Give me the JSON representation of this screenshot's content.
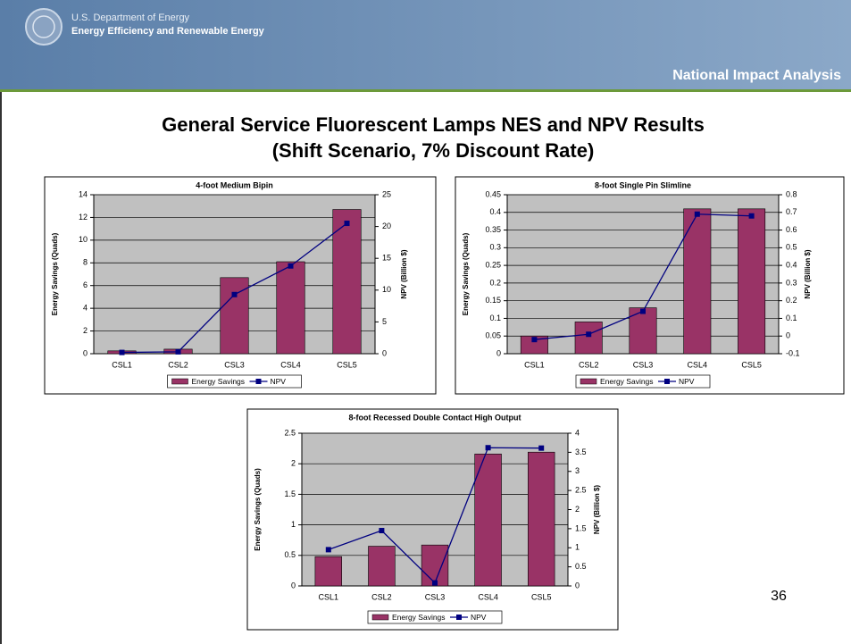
{
  "header": {
    "agency": "U.S. Department of Energy",
    "office": "Energy Efficiency and Renewable Energy",
    "section": "National Impact Analysis"
  },
  "title": [
    "General Service Fluorescent Lamps NES and NPV Results",
    "(Shift Scenario, 7% Discount Rate)"
  ],
  "page_number": "36",
  "chart_data": [
    {
      "type": "bar",
      "title": "4-foot Medium Bipin",
      "y_label": "Energy Savings (Quads)",
      "y2_label": "NPV (Billion $)",
      "categories": [
        "CSL1",
        "CSL2",
        "CSL3",
        "CSL4",
        "CSL5"
      ],
      "series": [
        {
          "name": "Energy Savings",
          "color": "#993366",
          "values": [
            0.25,
            0.4,
            6.7,
            8.1,
            12.7
          ]
        },
        {
          "name": "NPV",
          "type": "line",
          "axis": "y2",
          "color": "#000080",
          "values": [
            0.2,
            0.3,
            9.3,
            13.8,
            20.5
          ]
        }
      ],
      "ylim": [
        0,
        14
      ],
      "yticks": [
        0,
        2,
        4,
        6,
        8,
        10,
        12,
        14
      ],
      "y2lim": [
        0,
        25
      ],
      "y2ticks": [
        0,
        5,
        10,
        15,
        20,
        25
      ],
      "grid": true
    },
    {
      "type": "bar",
      "title": "8-foot Single Pin Slimline",
      "y_label": "Energy Savings (Quads)",
      "y2_label": "NPV (Billion $)",
      "categories": [
        "CSL1",
        "CSL2",
        "CSL3",
        "CSL4",
        "CSL5"
      ],
      "series": [
        {
          "name": "Energy Savings",
          "color": "#993366",
          "values": [
            0.05,
            0.09,
            0.13,
            0.41,
            0.41
          ]
        },
        {
          "name": "NPV",
          "type": "line",
          "axis": "y2",
          "color": "#000080",
          "values": [
            -0.02,
            0.01,
            0.14,
            0.69,
            0.68
          ]
        }
      ],
      "ylim": [
        0,
        0.45
      ],
      "yticks": [
        0,
        0.05,
        0.1,
        0.15,
        0.2,
        0.25,
        0.3,
        0.35,
        0.4,
        0.45
      ],
      "y2lim": [
        -0.1,
        0.8
      ],
      "y2ticks": [
        -0.1,
        0,
        0.1,
        0.2,
        0.3,
        0.4,
        0.5,
        0.6,
        0.7,
        0.8
      ],
      "grid": true
    },
    {
      "type": "bar",
      "title": "8-foot Recessed Double Contact High Output",
      "y_label": "Energy Savings (Quads)",
      "y2_label": "NPV (Billion $)",
      "categories": [
        "CSL1",
        "CSL2",
        "CSL3",
        "CSL4",
        "CSL5"
      ],
      "series": [
        {
          "name": "Energy Savings",
          "color": "#993366",
          "values": [
            0.48,
            0.65,
            0.67,
            2.16,
            2.19
          ]
        },
        {
          "name": "NPV",
          "type": "line",
          "axis": "y2",
          "color": "#000080",
          "values": [
            0.95,
            1.45,
            0.08,
            3.62,
            3.61
          ]
        }
      ],
      "ylim": [
        0,
        2.5
      ],
      "yticks": [
        0,
        0.5,
        1,
        1.5,
        2,
        2.5
      ],
      "y2lim": [
        0,
        4
      ],
      "y2ticks": [
        0,
        0.5,
        1,
        1.5,
        2,
        2.5,
        3,
        3.5,
        4
      ],
      "grid": true
    }
  ]
}
